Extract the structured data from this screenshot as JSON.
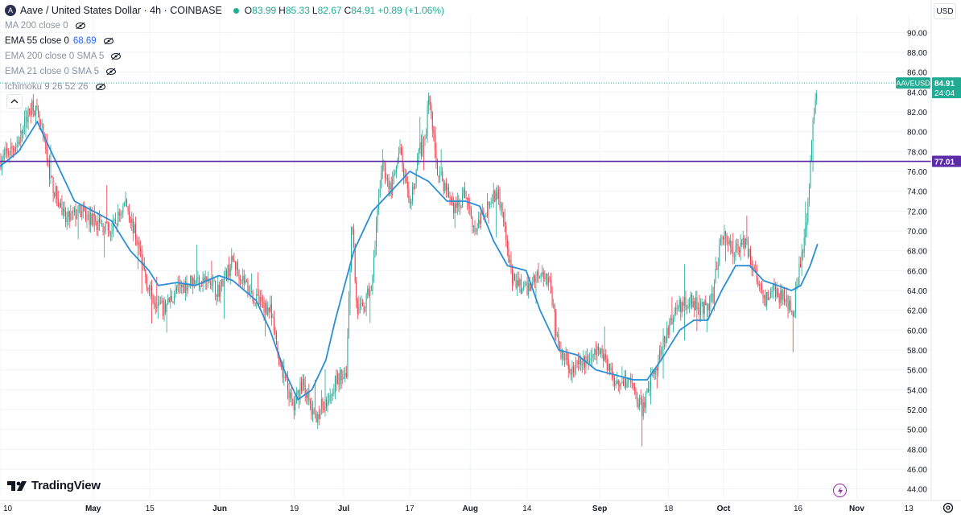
{
  "header": {
    "symbol_logo": "A",
    "title": "Aave / United States Dollar · 4h · COINBASE",
    "ohlc": {
      "o_label": "O",
      "o_value": "83.99",
      "h_label": "H",
      "h_value": "85.33",
      "l_label": "L",
      "l_value": "82.67",
      "c_label": "C",
      "c_value": "84.91",
      "change": "+0.89 (+1.06%)"
    }
  },
  "indicators": [
    {
      "label": "MA 200 close 0",
      "value": "",
      "hidden": true
    },
    {
      "label": "EMA 55 close 0",
      "value": "68.69",
      "hidden": false
    },
    {
      "label": "EMA 200 close 0 SMA 5",
      "value": "",
      "hidden": true
    },
    {
      "label": "EMA 21 close 0 SMA 5",
      "value": "",
      "hidden": true
    },
    {
      "label": "Ichimoku 9 26 52 26",
      "value": "",
      "hidden": true
    }
  ],
  "currency_button": "USD",
  "collapse_icon": "chevron-up-icon",
  "brand": "TradingView",
  "colors": {
    "up": "#22ab94",
    "down": "#f23645",
    "ema": "#2b8ed6",
    "level_line": "#5b2ba8",
    "price_tag": "#22ab94",
    "axis_text": "#131722"
  },
  "chart_data": {
    "type": "candlestick",
    "symbol": "AAVEUSD",
    "interval": "4h",
    "ylim": [
      43,
      91
    ],
    "y_ticks": [
      "90.00",
      "88.00",
      "86.00",
      "84.00",
      "82.00",
      "80.00",
      "78.00",
      "76.00",
      "74.00",
      "72.00",
      "70.00",
      "68.00",
      "66.00",
      "64.00",
      "62.00",
      "60.00",
      "58.00",
      "56.00",
      "54.00",
      "52.00",
      "50.00",
      "48.00",
      "46.00",
      "44.00"
    ],
    "x_ticks": [
      "10",
      "May",
      "15",
      "Jun",
      "19",
      "Jul",
      "17",
      "Aug",
      "14",
      "Sep",
      "18",
      "Oct",
      "16",
      "Nov",
      "13"
    ],
    "x_tick_fracs": [
      0.0,
      0.1,
      0.161,
      0.236,
      0.316,
      0.369,
      0.44,
      0.505,
      0.566,
      0.644,
      0.718,
      0.777,
      0.857,
      0.92,
      0.976
    ],
    "horizontal_line": {
      "value": 77.01,
      "label": "77.01"
    },
    "price_tag": {
      "label": "AAVEUSD",
      "value": "84.91",
      "countdown": "24:04",
      "price": 84.91
    },
    "series": [
      {
        "name": "AAVEUSD",
        "kind": "close",
        "points": [
          [
            0.0,
            77
          ],
          [
            0.02,
            79
          ],
          [
            0.035,
            83
          ],
          [
            0.045,
            80
          ],
          [
            0.055,
            75
          ],
          [
            0.07,
            71
          ],
          [
            0.085,
            72
          ],
          [
            0.1,
            71
          ],
          [
            0.12,
            70
          ],
          [
            0.135,
            73
          ],
          [
            0.15,
            68
          ],
          [
            0.16,
            64
          ],
          [
            0.175,
            62
          ],
          [
            0.19,
            64
          ],
          [
            0.205,
            65
          ],
          [
            0.22,
            65
          ],
          [
            0.235,
            64
          ],
          [
            0.25,
            67
          ],
          [
            0.262,
            65
          ],
          [
            0.275,
            63
          ],
          [
            0.29,
            62
          ],
          [
            0.3,
            57
          ],
          [
            0.315,
            52
          ],
          [
            0.325,
            55
          ],
          [
            0.337,
            51
          ],
          [
            0.35,
            53
          ],
          [
            0.362,
            55
          ],
          [
            0.372,
            56
          ],
          [
            0.378,
            72
          ],
          [
            0.383,
            62
          ],
          [
            0.39,
            62
          ],
          [
            0.4,
            65
          ],
          [
            0.41,
            77
          ],
          [
            0.42,
            74
          ],
          [
            0.43,
            78
          ],
          [
            0.44,
            72
          ],
          [
            0.45,
            78
          ],
          [
            0.457,
            79
          ],
          [
            0.46,
            84
          ],
          [
            0.47,
            76
          ],
          [
            0.48,
            74
          ],
          [
            0.49,
            72
          ],
          [
            0.5,
            74
          ],
          [
            0.51,
            70
          ],
          [
            0.52,
            72
          ],
          [
            0.535,
            74
          ],
          [
            0.55,
            65
          ],
          [
            0.565,
            64
          ],
          [
            0.58,
            66
          ],
          [
            0.59,
            65
          ],
          [
            0.6,
            58
          ],
          [
            0.615,
            56
          ],
          [
            0.63,
            57
          ],
          [
            0.645,
            58
          ],
          [
            0.66,
            55
          ],
          [
            0.675,
            55
          ],
          [
            0.69,
            52
          ],
          [
            0.7,
            55
          ],
          [
            0.71,
            58
          ],
          [
            0.725,
            62
          ],
          [
            0.74,
            63
          ],
          [
            0.755,
            62
          ],
          [
            0.765,
            63
          ],
          [
            0.775,
            70
          ],
          [
            0.787,
            68
          ],
          [
            0.8,
            69
          ],
          [
            0.81,
            66
          ],
          [
            0.82,
            63
          ],
          [
            0.83,
            64
          ],
          [
            0.845,
            63
          ],
          [
            0.852,
            62
          ],
          [
            0.86,
            67
          ],
          [
            0.866,
            70
          ],
          [
            0.872,
            80
          ],
          [
            0.878,
            84.91
          ]
        ]
      },
      {
        "name": "EMA 55",
        "kind": "line",
        "points": [
          [
            0.0,
            76.5
          ],
          [
            0.02,
            78
          ],
          [
            0.04,
            81
          ],
          [
            0.06,
            77
          ],
          [
            0.08,
            73
          ],
          [
            0.1,
            72
          ],
          [
            0.12,
            71
          ],
          [
            0.14,
            68
          ],
          [
            0.16,
            66
          ],
          [
            0.17,
            64.5
          ],
          [
            0.19,
            64.8
          ],
          [
            0.21,
            64.5
          ],
          [
            0.235,
            65.5
          ],
          [
            0.25,
            65
          ],
          [
            0.275,
            63
          ],
          [
            0.29,
            60
          ],
          [
            0.305,
            56
          ],
          [
            0.32,
            53
          ],
          [
            0.335,
            54
          ],
          [
            0.35,
            57
          ],
          [
            0.36,
            61
          ],
          [
            0.38,
            68
          ],
          [
            0.4,
            72
          ],
          [
            0.42,
            74
          ],
          [
            0.44,
            76
          ],
          [
            0.46,
            75
          ],
          [
            0.48,
            73
          ],
          [
            0.5,
            73
          ],
          [
            0.515,
            72.5
          ],
          [
            0.53,
            69
          ],
          [
            0.545,
            66.5
          ],
          [
            0.565,
            66
          ],
          [
            0.58,
            62
          ],
          [
            0.6,
            58
          ],
          [
            0.62,
            57.5
          ],
          [
            0.64,
            56
          ],
          [
            0.66,
            55.5
          ],
          [
            0.68,
            55
          ],
          [
            0.695,
            55
          ],
          [
            0.71,
            57
          ],
          [
            0.73,
            60
          ],
          [
            0.745,
            61
          ],
          [
            0.76,
            61
          ],
          [
            0.775,
            64
          ],
          [
            0.79,
            66.5
          ],
          [
            0.805,
            66.5
          ],
          [
            0.82,
            65
          ],
          [
            0.835,
            64.5
          ],
          [
            0.85,
            64
          ],
          [
            0.86,
            64.5
          ],
          [
            0.87,
            66.5
          ],
          [
            0.878,
            68.69
          ]
        ]
      }
    ]
  }
}
